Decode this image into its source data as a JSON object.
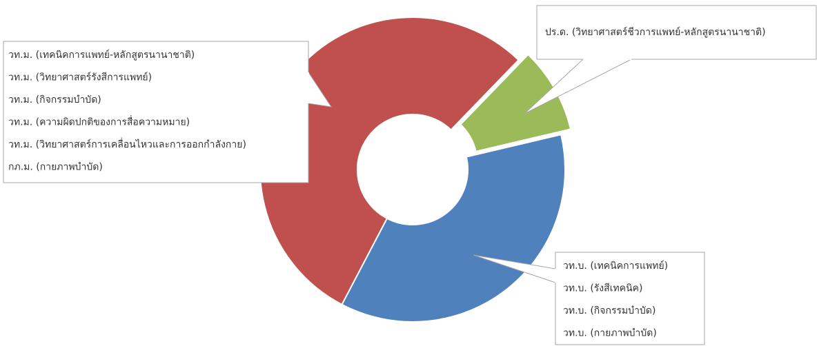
{
  "chart_data": {
    "type": "donut",
    "categories": [
      [
        "ปร.ด. (วิทยาศาสตร์ชีวการแพทย์-หลักสูตรนานาชาติ)"
      ],
      [
        "วท.บ. (เทคนิคการแพทย์)",
        "วท.บ. (รังสีเทคนิค)",
        "วท.บ. (กิจกรรมบำบัด)",
        "วท.บ. (กายภาพบำบัด)"
      ],
      [
        "วท.ม. (เทคนิคการแพทย์-หลักสูตรนานาชาติ)",
        "วท.ม. (วิทยาศาสตร์รังสีการแพทย์)",
        "วท.ม. (กิจกรรมบำบัด)",
        "วท.ม. (ความผิดปกติของการสื่อความหมาย)",
        "วท.ม. (วิทยาศาสตร์การเคลื่อนไหวและการออกกำลังกาย)",
        "กภ.ม. (กายภาพบำบัด)"
      ]
    ],
    "values": [
      1,
      4,
      6
    ],
    "colors": [
      "#9bbb59",
      "#4f81bd",
      "#c0504d"
    ]
  }
}
